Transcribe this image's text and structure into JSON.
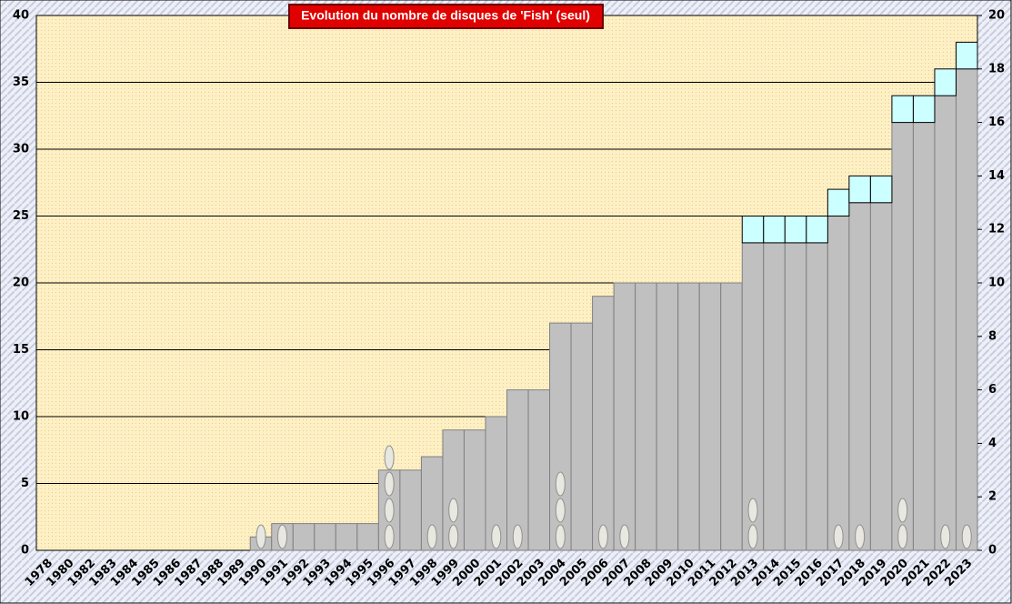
{
  "chart_data": {
    "type": "bar",
    "title": "Evolution du nombre de disques de 'Fish' (seul)",
    "categories": [
      "1978",
      "1980",
      "1982",
      "1983",
      "1984",
      "1985",
      "1986",
      "1987",
      "1988",
      "1989",
      "1990",
      "1991",
      "1992",
      "1993",
      "1994",
      "1995",
      "1996",
      "1997",
      "1998",
      "1999",
      "2000",
      "2001",
      "2002",
      "2003",
      "2004",
      "2005",
      "2006",
      "2007",
      "2008",
      "2009",
      "2010",
      "2011",
      "2012",
      "2013",
      "2014",
      "2015",
      "2016",
      "2017",
      "2018",
      "2019",
      "2020",
      "2021",
      "2022",
      "2023"
    ],
    "series": [
      {
        "color": "#c0c0c0",
        "values": [
          0,
          0,
          0,
          0,
          0,
          0,
          0,
          0,
          0,
          0,
          1,
          2,
          2,
          2,
          2,
          2,
          6,
          6,
          7,
          9,
          9,
          10,
          12,
          12,
          17,
          17,
          19,
          20,
          20,
          20,
          20,
          20,
          20,
          23,
          23,
          23,
          23,
          25,
          26,
          26,
          32,
          32,
          34,
          36
        ]
      },
      {
        "color": "#ccffff",
        "values": [
          0,
          0,
          0,
          0,
          0,
          0,
          0,
          0,
          0,
          0,
          0,
          0,
          0,
          0,
          0,
          0,
          0,
          0,
          0,
          0,
          0,
          0,
          0,
          0,
          0,
          0,
          0,
          0,
          0,
          0,
          0,
          0,
          0,
          2,
          2,
          2,
          2,
          2,
          2,
          2,
          2,
          2,
          2,
          2
        ]
      }
    ],
    "discs": [
      0,
      0,
      0,
      0,
      0,
      0,
      0,
      0,
      0,
      0,
      1,
      1,
      0,
      0,
      0,
      0,
      4,
      0,
      1,
      2,
      0,
      1,
      1,
      0,
      3,
      0,
      1,
      1,
      0,
      0,
      0,
      0,
      0,
      2,
      0,
      0,
      0,
      1,
      1,
      0,
      2,
      0,
      1,
      1
    ],
    "ylim": [
      0,
      40
    ],
    "yticks": [
      0,
      5,
      10,
      15,
      20,
      25,
      30,
      35,
      40
    ],
    "y2lim": [
      0,
      20
    ],
    "y2ticks": [
      0,
      2,
      4,
      6,
      8,
      10,
      12,
      14,
      16,
      18,
      20
    ],
    "grid": true
  }
}
